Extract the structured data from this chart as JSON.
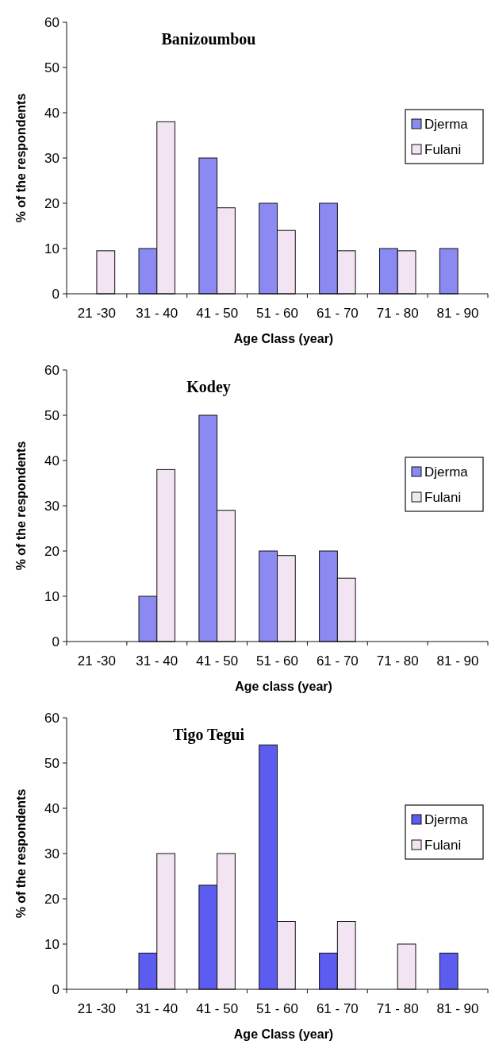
{
  "chart_data": [
    {
      "type": "bar",
      "title": "Banizoumbou",
      "xlabel": "Age Class (year)",
      "ylabel": "% of the respondents",
      "categories": [
        "21 -30",
        "31 - 40",
        "41 - 50",
        "51 - 60",
        "61 - 70",
        "71 - 80",
        "81 - 90"
      ],
      "series": [
        {
          "name": "Djerma",
          "color": "#8a8af2",
          "values": [
            0,
            10,
            30,
            20,
            20,
            10,
            10
          ]
        },
        {
          "name": "Fulani",
          "color": "#f2e4f2",
          "values": [
            9.5,
            38,
            19,
            14,
            9.5,
            9.5,
            0
          ]
        }
      ],
      "ylim": [
        0,
        60
      ],
      "yticks": [
        0,
        10,
        20,
        30,
        40,
        50,
        60
      ],
      "legend": "right"
    },
    {
      "type": "bar",
      "title": "Kodey",
      "xlabel": "Age class (year)",
      "ylabel": "% of the respondents",
      "categories": [
        "21 -30",
        "31 - 40",
        "41 - 50",
        "51 - 60",
        "61 - 70",
        "71 - 80",
        "81 - 90"
      ],
      "series": [
        {
          "name": "Djerma",
          "color": "#8a8af2",
          "values": [
            0,
            10,
            50,
            20,
            20,
            0,
            0
          ]
        },
        {
          "name": "Fulani",
          "color": "#f2e4f2",
          "values": [
            0,
            38,
            29,
            19,
            14,
            0,
            0
          ]
        }
      ],
      "ylim": [
        0,
        60
      ],
      "yticks": [
        0,
        10,
        20,
        30,
        40,
        50,
        60
      ],
      "legend": "right"
    },
    {
      "type": "bar",
      "title": "Tigo Tegui",
      "xlabel": "Age Class (year)",
      "ylabel": "% of the respondents",
      "categories": [
        "21 -30",
        "31 - 40",
        "41 - 50",
        "51 - 60",
        "61 - 70",
        "71 - 80",
        "81 - 90"
      ],
      "series": [
        {
          "name": "Djerma",
          "color": "#5c5cf0",
          "values": [
            0,
            8,
            23,
            54,
            8,
            0,
            8
          ]
        },
        {
          "name": "Fulani",
          "color": "#f2e4f2",
          "values": [
            0,
            30,
            30,
            15,
            15,
            10,
            0
          ]
        }
      ],
      "ylim": [
        0,
        60
      ],
      "yticks": [
        0,
        10,
        20,
        30,
        40,
        50,
        60
      ],
      "legend": "right"
    }
  ]
}
